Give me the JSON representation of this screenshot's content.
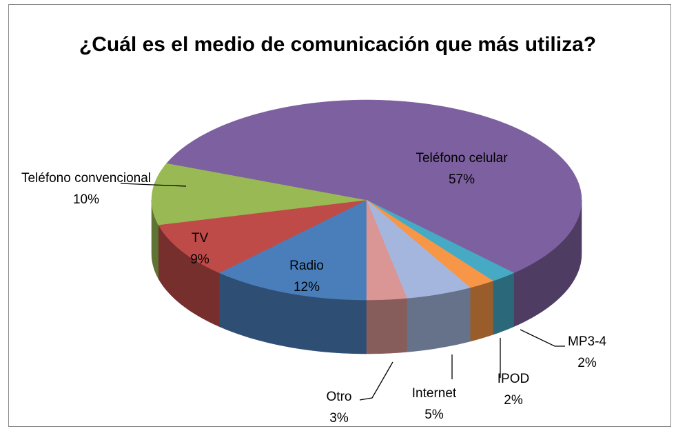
{
  "chart_data": {
    "type": "pie3d",
    "title": "¿Cuál es el medio de comunicación que más utiliza?",
    "categories": [
      "Radio",
      "TV",
      "Teléfono convencional",
      "Teléfono celular",
      "MP3-4",
      "IPOD",
      "Internet",
      "Otro"
    ],
    "values": [
      12,
      9,
      10,
      57,
      2,
      2,
      5,
      3
    ],
    "value_labels": [
      "12%",
      "9%",
      "10%",
      "57%",
      "2%",
      "2%",
      "5%",
      "3%"
    ],
    "colors": [
      "#4a7ebb",
      "#be4b48",
      "#98b954",
      "#7d60a0",
      "#46aac5",
      "#f79646",
      "#a5b6de",
      "#d99694"
    ]
  }
}
